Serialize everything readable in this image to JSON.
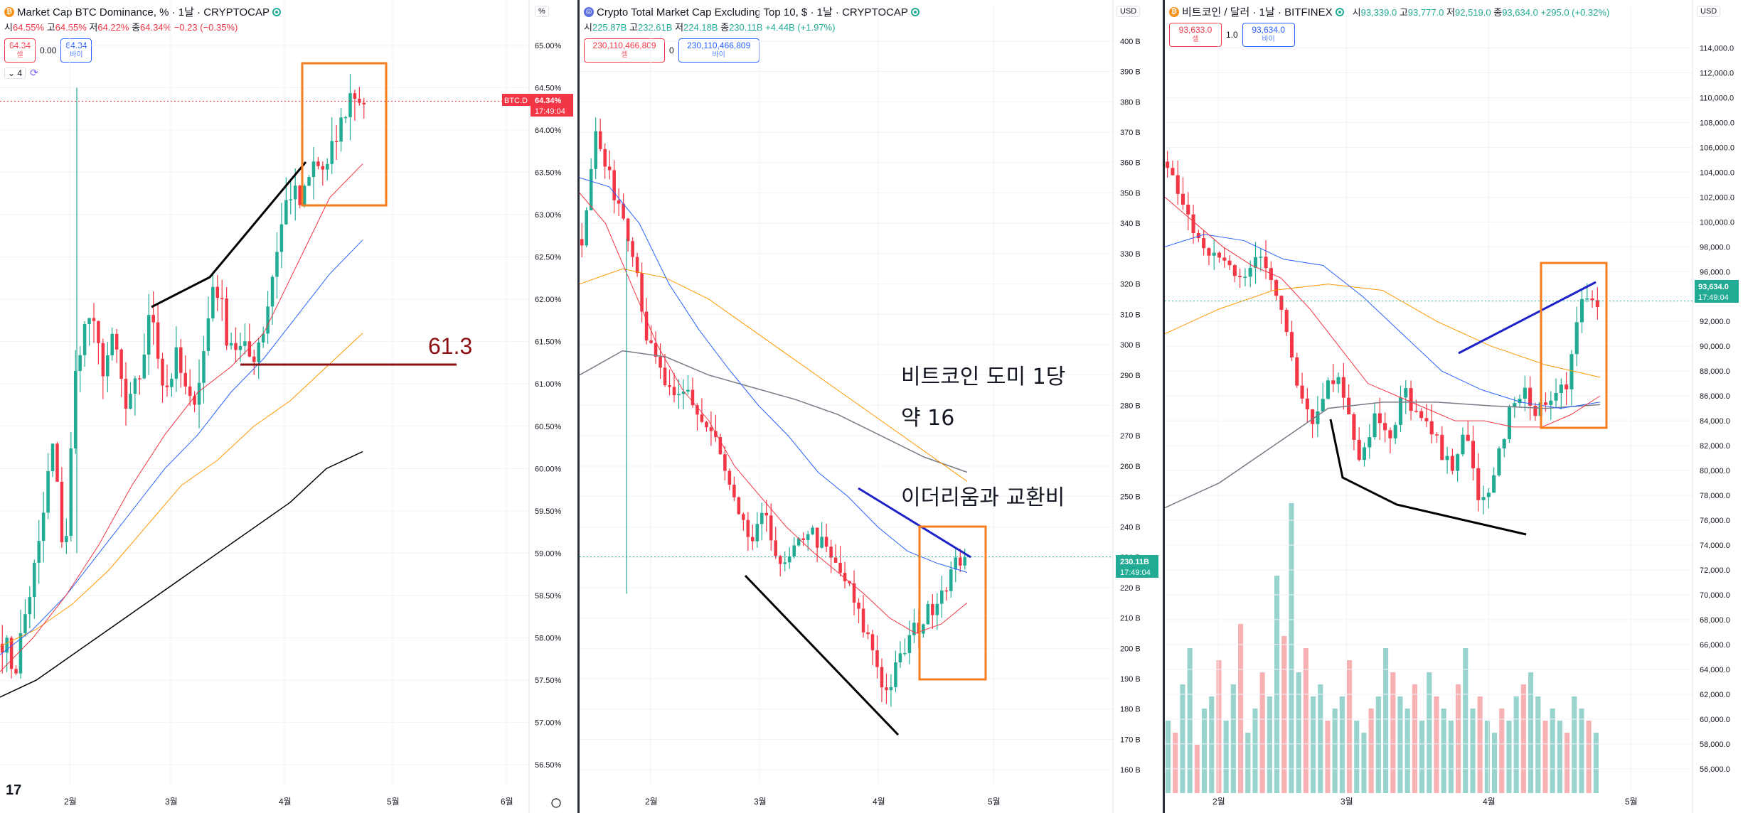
{
  "colors": {
    "up": "#22ab94",
    "down": "#f23645",
    "ma_red": "#f23645",
    "ma_blue": "#2962ff",
    "ma_orange": "#ff9800",
    "ma_black": "#000000",
    "ma_gray": "#787b86",
    "box": "#f77c1c",
    "trend_blue": "#1e22c8",
    "trend_black": "#000000",
    "support": "#8b0f12",
    "vol_up": "#8dcfc8",
    "vol_down": "#f7a9ab"
  },
  "panels": [
    {
      "id": "btcd",
      "icon": "bitcoin-icon",
      "title": "Market Cap BTC Dominance, % · 1날 · CRYPTOCAP",
      "ohlc": {
        "o_label": "시",
        "o": "64.55%",
        "h_label": "고",
        "h": "64.55%",
        "l_label": "저",
        "l": "64.22%",
        "c_label": "종",
        "c": "64.34%",
        "chg": "−0.23 (−0.35%)"
      },
      "sell": {
        "value": "64.34",
        "label": "셀"
      },
      "spread": "0.00",
      "buy": {
        "value": "64.34",
        "label": "바이"
      },
      "indicator_count": "4",
      "unit": "%",
      "price_label": {
        "symbol": "BTC.D",
        "value": "64.34%",
        "time": "17:49:04"
      },
      "annotations": [
        "61.3"
      ]
    },
    {
      "id": "total3",
      "icon": "crypto-cap-icon",
      "title": "Crypto Total Market Cap Excluding Top 10, $ · 1날 · CRYPTOCAP",
      "ohlc": {
        "o_label": "시",
        "o": "225.87B",
        "h_label": "고",
        "h": "232.61B",
        "l_label": "저",
        "l": "224.18B",
        "c_label": "종",
        "c": "230.11B",
        "chg": "+4.44B (+1.97%)"
      },
      "sell": {
        "value": "230,110,466,809",
        "label": "셀"
      },
      "spread": "0",
      "buy": {
        "value": "230,110,466,809",
        "label": "바이"
      },
      "unit": "USD",
      "price_label": {
        "value": "230.11B",
        "time": "17:49:04"
      },
      "annotations": [
        "비트코인 도미 1당",
        "약 16",
        "이더리움과 교환비"
      ]
    },
    {
      "id": "btcusd",
      "icon": "bitcoin-icon",
      "title": "비트코인 / 달러 · 1날 · BITFINEX",
      "ohlc": {
        "o_label": "시",
        "o": "93,339.0",
        "h_label": "고",
        "h": "93,777.0",
        "l_label": "저",
        "l": "92,519.0",
        "c_label": "종",
        "c": "93,634.0",
        "chg": "+295.0 (+0.32%)"
      },
      "sell": {
        "value": "93,633.0",
        "label": "셀"
      },
      "spread": "1.0",
      "buy": {
        "value": "93,634.0",
        "label": "바이"
      },
      "unit": "USD",
      "price_label": {
        "value": "93,634.0",
        "time": "17:49:04"
      },
      "annotations": []
    }
  ],
  "chart_data": [
    {
      "type": "candlestick",
      "title": "Market Cap BTC Dominance, % · 1날 · CRYPTOCAP",
      "y_ticks": [
        "65.00%",
        "64.50%",
        "64.00%",
        "63.50%",
        "63.00%",
        "62.50%",
        "62.00%",
        "61.50%",
        "61.00%",
        "60.50%",
        "60.00%",
        "59.50%",
        "59.00%",
        "58.50%",
        "58.00%",
        "57.50%",
        "57.00%",
        "56.50%"
      ],
      "x_ticks": [
        "2월",
        "3월",
        "4월",
        "5월",
        "6월"
      ],
      "ylim": [
        56.3,
        65.2
      ],
      "current": 64.34,
      "support_level": 61.3,
      "close_path": [
        58.0,
        57.6,
        58.4,
        59.1,
        60.3,
        58.9,
        61.4,
        61.8,
        61.2,
        61.5,
        60.6,
        61.1,
        61.9,
        60.9,
        61.3,
        60.7,
        61.2,
        62.3,
        61.6,
        61.4,
        61.3,
        61.7,
        62.6,
        63.3,
        63.1,
        63.6,
        63.5,
        64.0,
        64.45,
        64.34
      ],
      "ma_red": [
        57.6,
        58.0,
        58.5,
        59.1,
        59.8,
        60.4,
        60.9,
        61.2,
        61.6,
        62.4,
        63.2,
        63.6
      ],
      "ma_blue": [
        57.8,
        58.1,
        58.5,
        59.0,
        59.5,
        60.0,
        60.4,
        60.9,
        61.3,
        61.8,
        62.3,
        62.7
      ],
      "ma_orange": [
        57.9,
        58.1,
        58.4,
        58.8,
        59.3,
        59.8,
        60.1,
        60.5,
        60.8,
        61.2,
        61.6
      ],
      "ma_black": [
        57.3,
        57.5,
        57.8,
        58.1,
        58.4,
        58.7,
        59.0,
        59.3,
        59.6,
        60.0,
        60.2
      ]
    },
    {
      "type": "candlestick",
      "title": "Crypto Total Market Cap Excluding Top 10, $ · 1날 · CRYPTOCAP",
      "y_ticks": [
        "400 B",
        "390 B",
        "380 B",
        "370 B",
        "360 B",
        "350 B",
        "340 B",
        "330 B",
        "320 B",
        "310 B",
        "300 B",
        "290 B",
        "280 B",
        "270 B",
        "260 B",
        "250 B",
        "240 B",
        "230 B",
        "220 B",
        "210 B",
        "200 B",
        "190 B",
        "180 B",
        "170 B",
        "160 B"
      ],
      "x_ticks": [
        "2월",
        "3월",
        "4월",
        "5월"
      ],
      "ylim": [
        157,
        403
      ],
      "current": 230.11,
      "close_path": [
        335,
        370,
        355,
        345,
        330,
        300,
        290,
        280,
        285,
        275,
        270,
        255,
        240,
        235,
        245,
        225,
        230,
        240,
        235,
        228,
        222,
        210,
        200,
        185,
        195,
        205,
        210,
        218,
        225,
        232
      ],
      "ma_red": [
        350,
        340,
        320,
        300,
        285,
        275,
        260,
        250,
        240,
        232,
        225,
        218,
        210,
        205,
        208,
        215
      ],
      "ma_blue": [
        355,
        352,
        340,
        320,
        305,
        292,
        280,
        270,
        258,
        250,
        240,
        232,
        228,
        225
      ],
      "ma_orange": [
        320,
        325,
        322,
        315,
        305,
        295,
        285,
        275,
        265,
        255
      ],
      "ma_gray": [
        290,
        298,
        296,
        290,
        286,
        282,
        277,
        270,
        263,
        258
      ]
    },
    {
      "type": "candlestick",
      "title": "비트코인 / 달러 · 1날 · BITFINEX",
      "y_ticks": [
        "114,000.0",
        "112,000.0",
        "110,000.0",
        "108,000.0",
        "106,000.0",
        "104,000.0",
        "102,000.0",
        "100,000.0",
        "98,000.0",
        "96,000.0",
        "94,000.0",
        "92,000.0",
        "90,000.0",
        "88,000.0",
        "86,000.0",
        "84,000.0",
        "82,000.0",
        "80,000.0",
        "78,000.0",
        "76,000.0",
        "74,000.0",
        "72,000.0",
        "70,000.0",
        "68,000.0",
        "66,000.0",
        "64,000.0",
        "62,000.0",
        "60,000.0",
        "58,000.0",
        "56,000.0"
      ],
      "x_ticks": [
        "2월",
        "3월",
        "4월",
        "5월"
      ],
      "ylim": [
        54500,
        115000
      ],
      "current": 93634,
      "close_path": [
        104000,
        102000,
        98000,
        97500,
        96500,
        96000,
        97000,
        95500,
        92000,
        86000,
        84000,
        88000,
        86000,
        81000,
        84500,
        82000,
        86500,
        84000,
        82500,
        80000,
        83500,
        77000,
        79500,
        84500,
        86000,
        85000,
        85500,
        87500,
        93500,
        93634
      ],
      "ma_red": [
        102000,
        100000,
        98000,
        96500,
        95500,
        93000,
        90000,
        87000,
        86000,
        85000,
        84000,
        84000,
        83500,
        83500,
        84500,
        86000
      ],
      "ma_blue": [
        98000,
        99000,
        98500,
        97000,
        96500,
        94000,
        91000,
        88000,
        86500,
        85500,
        85000,
        85500
      ],
      "ma_orange": [
        91000,
        93000,
        94500,
        95000,
        94500,
        92000,
        90000,
        88500,
        87500
      ],
      "ma_gray": [
        77000,
        79000,
        82000,
        85000,
        85500,
        85500,
        85200,
        85000,
        85300
      ],
      "volume": [
        30,
        25,
        45,
        60,
        20,
        35,
        40,
        55,
        30,
        45,
        70,
        25,
        35,
        50,
        40,
        90,
        65,
        120,
        50,
        60,
        40,
        45,
        30,
        35,
        40,
        55,
        30,
        25,
        35,
        40,
        60,
        50,
        40,
        35,
        45,
        30,
        50,
        40,
        35,
        30,
        45,
        60,
        35,
        40,
        30,
        25,
        35,
        30,
        40,
        45,
        50,
        40,
        30,
        35,
        30,
        25,
        40,
        35,
        30,
        25
      ]
    }
  ]
}
